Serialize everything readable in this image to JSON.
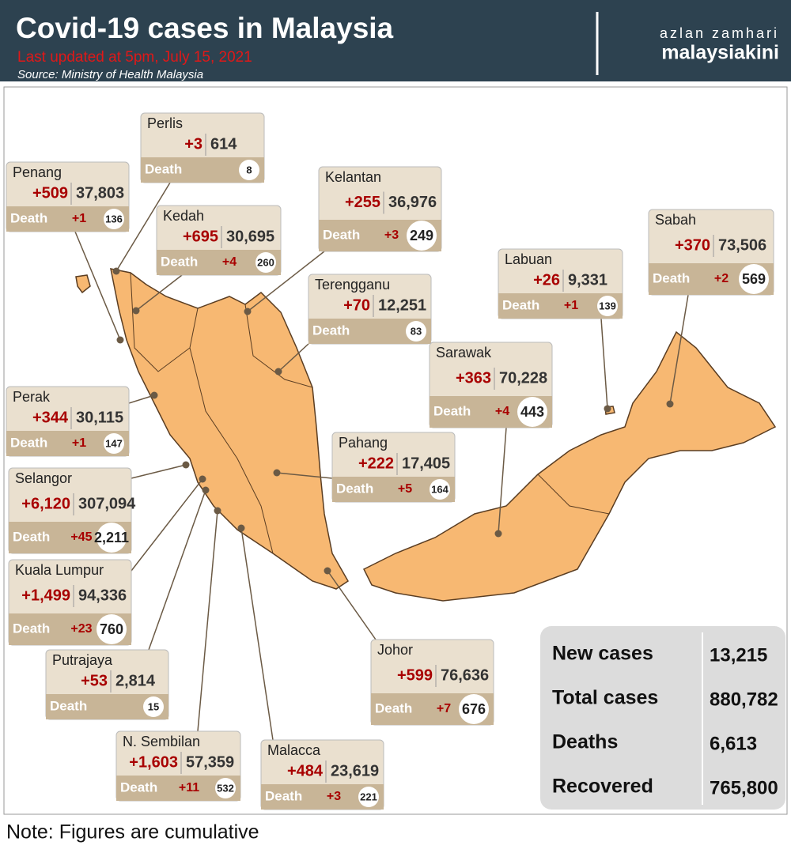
{
  "header": {
    "title": "Covid-19 cases in Malaysia",
    "updated": "Last updated at 5pm, July 15, 2021",
    "source": "Source: Ministry of Health Malaysia",
    "author": "azlan zamhari",
    "brand": "malaysiakini"
  },
  "death_label": "Death",
  "states": [
    {
      "name": "Perlis",
      "new_cases": "+3",
      "total": "614",
      "deaths": "8"
    },
    {
      "name": "Penang",
      "new_cases": "+509",
      "total": "37,803",
      "new_deaths": "+1",
      "deaths": "136"
    },
    {
      "name": "Kedah",
      "new_cases": "+695",
      "total": "30,695",
      "new_deaths": "+4",
      "deaths": "260"
    },
    {
      "name": "Kelantan",
      "new_cases": "+255",
      "total": "36,976",
      "new_deaths": "+3",
      "deaths": "249"
    },
    {
      "name": "Terengganu",
      "new_cases": "+70",
      "total": "12,251",
      "deaths": "83"
    },
    {
      "name": "Labuan",
      "new_cases": "+26",
      "total": "9,331",
      "new_deaths": "+1",
      "deaths": "139"
    },
    {
      "name": "Sabah",
      "new_cases": "+370",
      "total": "73,506",
      "new_deaths": "+2",
      "deaths": "569"
    },
    {
      "name": "Sarawak",
      "new_cases": "+363",
      "total": "70,228",
      "new_deaths": "+4",
      "deaths": "443"
    },
    {
      "name": "Perak",
      "new_cases": "+344",
      "total": "30,115",
      "new_deaths": "+1",
      "deaths": "147"
    },
    {
      "name": "Pahang",
      "new_cases": "+222",
      "total": "17,405",
      "new_deaths": "+5",
      "deaths": "164"
    },
    {
      "name": "Selangor",
      "new_cases": "+6,120",
      "total": "307,094",
      "new_deaths": "+45",
      "deaths": "2,211"
    },
    {
      "name": "Kuala Lumpur",
      "new_cases": "+1,499",
      "total": "94,336",
      "new_deaths": "+23",
      "deaths": "760"
    },
    {
      "name": "Putrajaya",
      "new_cases": "+53",
      "total": "2,814",
      "deaths": "15"
    },
    {
      "name": "N. Sembilan",
      "new_cases": "+1,603",
      "total": "57,359",
      "new_deaths": "+11",
      "deaths": "532"
    },
    {
      "name": "Malacca",
      "new_cases": "+484",
      "total": "23,619",
      "new_deaths": "+3",
      "deaths": "221"
    },
    {
      "name": "Johor",
      "new_cases": "+599",
      "total": "76,636",
      "new_deaths": "+7",
      "deaths": "676"
    }
  ],
  "summary": [
    {
      "label": "New cases",
      "value": "13,215"
    },
    {
      "label": "Total cases",
      "value": "880,782"
    },
    {
      "label": "Deaths",
      "value": "6,613"
    },
    {
      "label": "Recovered",
      "value": "765,800"
    }
  ],
  "note": "Note: Figures are cumulative"
}
